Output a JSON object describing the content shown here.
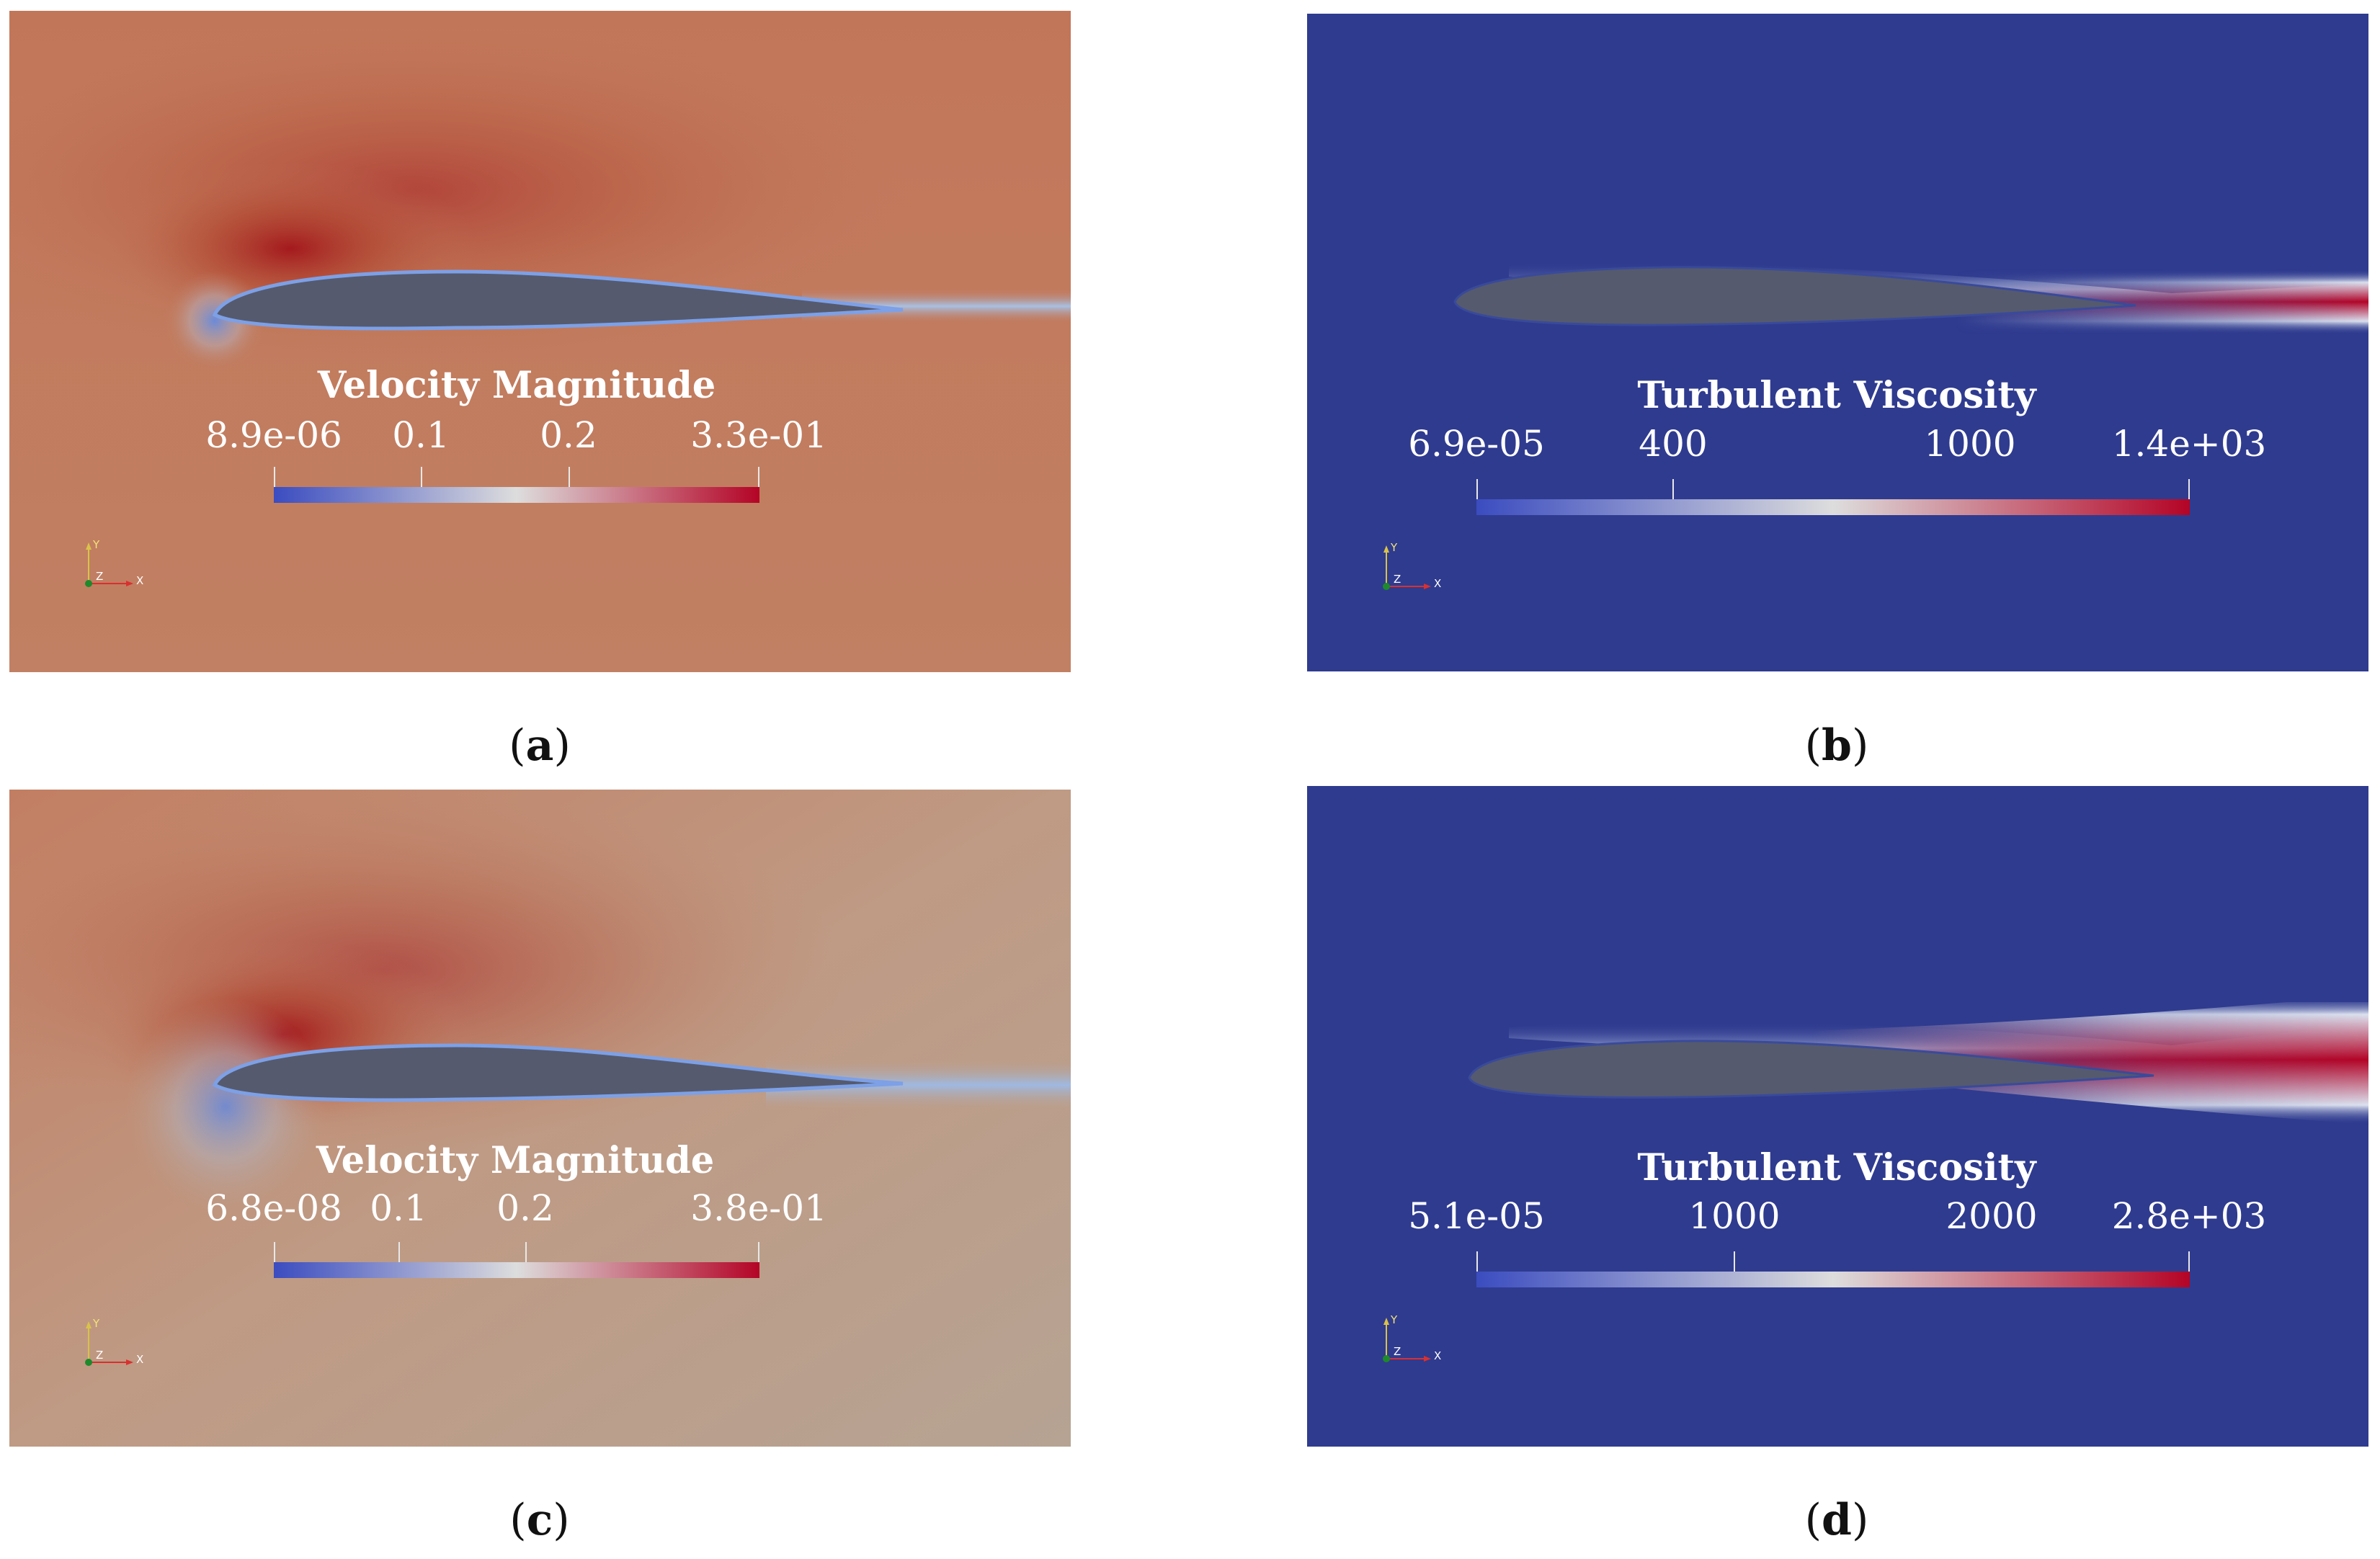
{
  "panels": [
    {
      "id": "a",
      "colorbar": {
        "title": "Velocity Magnitude",
        "ticks": [
          "8.9e-06",
          "0.1",
          "0.2",
          "3.3e-01"
        ],
        "min": 8.9e-06,
        "max": 0.33,
        "tick_values": [
          8.9e-06,
          0.1,
          0.2,
          0.33
        ],
        "colormap": [
          "#3b4cc0",
          "#dddddd",
          "#b40426"
        ]
      },
      "axes_labels": {
        "y": "Y",
        "z": "Z",
        "x": "X"
      },
      "caption": {
        "open": "(",
        "letter": "a",
        "close": ")"
      }
    },
    {
      "id": "b",
      "colorbar": {
        "title": "Turbulent Viscosity",
        "ticks": [
          "6.9e-05",
          "400",
          "1000",
          "1.4e+03"
        ],
        "min": 6.9e-05,
        "max": 1400,
        "tick_values": [
          6.9e-05,
          400,
          1000,
          1400
        ],
        "colormap": [
          "#3b4cc0",
          "#dddddd",
          "#b40426"
        ]
      },
      "axes_labels": {
        "y": "Y",
        "z": "Z",
        "x": "X"
      },
      "caption": {
        "open": "(",
        "letter": "b",
        "close": ")"
      }
    },
    {
      "id": "c",
      "colorbar": {
        "title": "Velocity Magnitude",
        "ticks": [
          "6.8e-08",
          "0.1",
          "0.2",
          "3.8e-01"
        ],
        "min": 6.8e-08,
        "max": 0.38,
        "tick_values": [
          6.8e-08,
          0.1,
          0.2,
          0.38
        ],
        "colormap": [
          "#3b4cc0",
          "#dddddd",
          "#b40426"
        ]
      },
      "axes_labels": {
        "y": "Y",
        "z": "Z",
        "x": "X"
      },
      "caption": {
        "open": "(",
        "letter": "c",
        "close": ")"
      }
    },
    {
      "id": "d",
      "colorbar": {
        "title": "Turbulent Viscosity",
        "ticks": [
          "5.1e-05",
          "1000",
          "2000",
          "2.8e+03"
        ],
        "min": 5.1e-05,
        "max": 2800,
        "tick_values": [
          5.1e-05,
          1000,
          2000,
          2800
        ],
        "colormap": [
          "#3b4cc0",
          "#dddddd",
          "#b40426"
        ]
      },
      "axes_labels": {
        "y": "Y",
        "z": "Z",
        "x": "X"
      },
      "caption": {
        "open": "(",
        "letter": "d",
        "close": ")"
      }
    }
  ],
  "colors": {
    "velocity_background_a": "#c07a5e",
    "velocity_background_c": "#bba08e",
    "velocity_high": "#a3211c",
    "velocity_low": "#6f8ed8",
    "viscosity_background": "#2f3b8f",
    "viscosity_wake": "#b40426",
    "airfoil": "#555a6e"
  }
}
